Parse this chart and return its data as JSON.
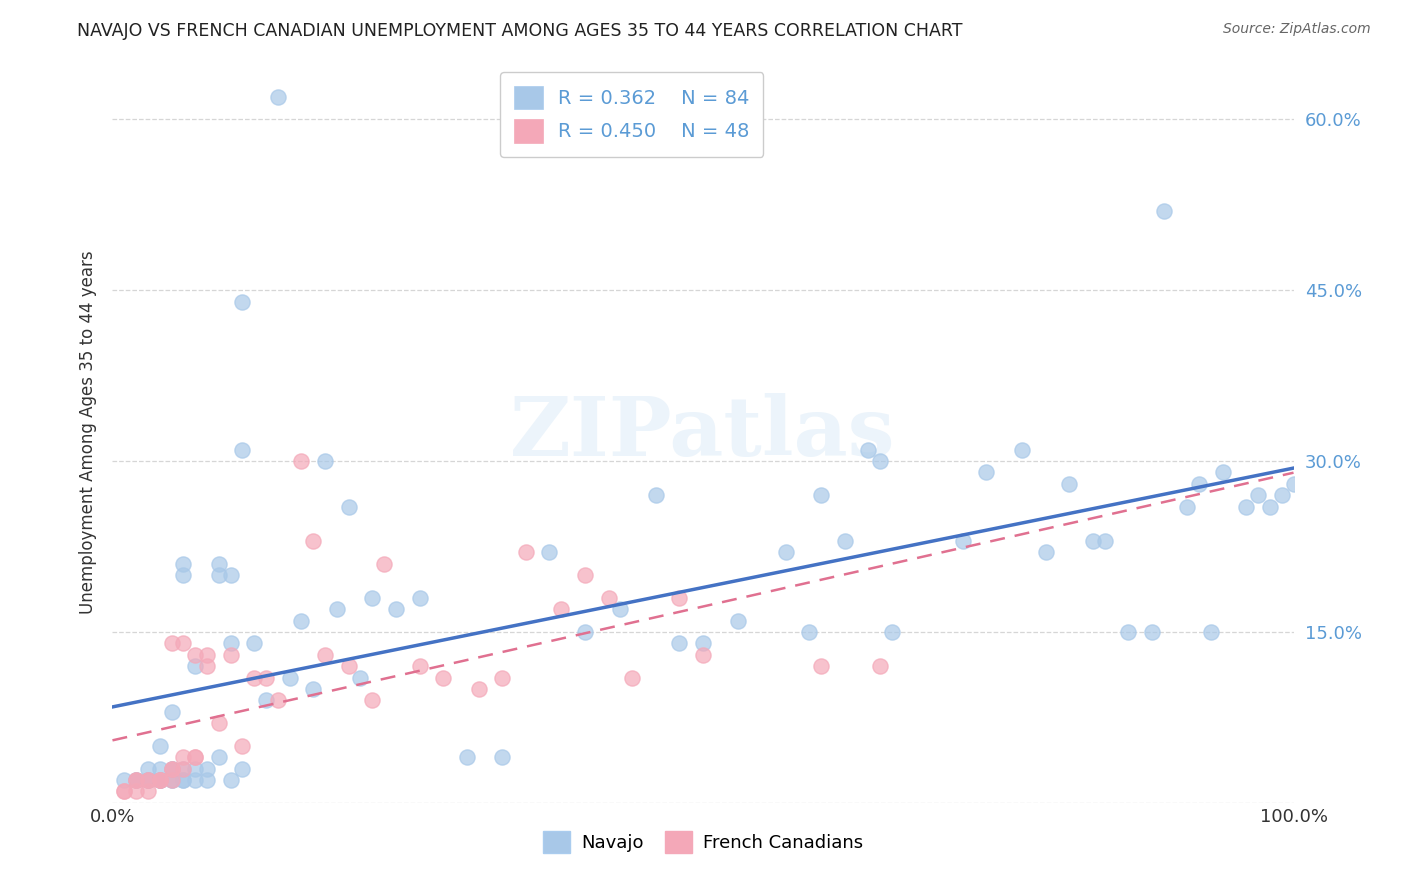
{
  "title": "NAVAJO VS FRENCH CANADIAN UNEMPLOYMENT AMONG AGES 35 TO 44 YEARS CORRELATION CHART",
  "source": "Source: ZipAtlas.com",
  "ylabel": "Unemployment Among Ages 35 to 44 years",
  "xlim": [
    0,
    1.0
  ],
  "ylim": [
    0,
    0.65
  ],
  "yticks": [
    0.0,
    0.15,
    0.3,
    0.45,
    0.6
  ],
  "yticklabels": [
    "",
    "15.0%",
    "30.0%",
    "45.0%",
    "60.0%"
  ],
  "navajo_R": 0.362,
  "navajo_N": 84,
  "french_R": 0.45,
  "french_N": 48,
  "navajo_color": "#A8C8E8",
  "french_color": "#F4A8B8",
  "navajo_line_color": "#4472C4",
  "french_line_color": "#E07090",
  "watermark_text": "ZIPatlas",
  "background_color": "#FFFFFF",
  "tick_color": "#5B9BD5",
  "navajo_x": [
    0.01,
    0.02,
    0.02,
    0.03,
    0.03,
    0.03,
    0.03,
    0.04,
    0.04,
    0.04,
    0.04,
    0.04,
    0.05,
    0.05,
    0.05,
    0.05,
    0.05,
    0.06,
    0.06,
    0.06,
    0.06,
    0.06,
    0.07,
    0.07,
    0.07,
    0.08,
    0.08,
    0.09,
    0.09,
    0.09,
    0.1,
    0.1,
    0.1,
    0.11,
    0.11,
    0.11,
    0.12,
    0.13,
    0.14,
    0.15,
    0.16,
    0.17,
    0.18,
    0.19,
    0.2,
    0.21,
    0.22,
    0.24,
    0.26,
    0.3,
    0.33,
    0.37,
    0.4,
    0.43,
    0.46,
    0.48,
    0.5,
    0.53,
    0.57,
    0.59,
    0.6,
    0.62,
    0.64,
    0.65,
    0.66,
    0.72,
    0.74,
    0.77,
    0.79,
    0.81,
    0.83,
    0.84,
    0.86,
    0.88,
    0.89,
    0.91,
    0.92,
    0.93,
    0.94,
    0.96,
    0.97,
    0.98,
    0.99,
    1.0
  ],
  "navajo_y": [
    0.02,
    0.02,
    0.02,
    0.02,
    0.02,
    0.02,
    0.03,
    0.02,
    0.02,
    0.03,
    0.05,
    0.02,
    0.02,
    0.02,
    0.03,
    0.03,
    0.08,
    0.02,
    0.02,
    0.03,
    0.2,
    0.21,
    0.02,
    0.03,
    0.12,
    0.02,
    0.03,
    0.04,
    0.2,
    0.21,
    0.02,
    0.14,
    0.2,
    0.31,
    0.44,
    0.03,
    0.14,
    0.09,
    0.62,
    0.11,
    0.16,
    0.1,
    0.3,
    0.17,
    0.26,
    0.11,
    0.18,
    0.17,
    0.18,
    0.04,
    0.04,
    0.22,
    0.15,
    0.17,
    0.27,
    0.14,
    0.14,
    0.16,
    0.22,
    0.15,
    0.27,
    0.23,
    0.31,
    0.3,
    0.15,
    0.23,
    0.29,
    0.31,
    0.22,
    0.28,
    0.23,
    0.23,
    0.15,
    0.15,
    0.52,
    0.26,
    0.28,
    0.15,
    0.29,
    0.26,
    0.27,
    0.26,
    0.27,
    0.28
  ],
  "french_x": [
    0.01,
    0.01,
    0.02,
    0.02,
    0.02,
    0.03,
    0.03,
    0.03,
    0.04,
    0.04,
    0.04,
    0.05,
    0.05,
    0.05,
    0.05,
    0.06,
    0.06,
    0.06,
    0.07,
    0.07,
    0.07,
    0.08,
    0.08,
    0.09,
    0.1,
    0.11,
    0.12,
    0.13,
    0.14,
    0.16,
    0.17,
    0.18,
    0.2,
    0.22,
    0.23,
    0.26,
    0.28,
    0.31,
    0.33,
    0.35,
    0.38,
    0.4,
    0.42,
    0.44,
    0.48,
    0.5,
    0.6,
    0.65
  ],
  "french_y": [
    0.01,
    0.01,
    0.01,
    0.02,
    0.02,
    0.01,
    0.02,
    0.02,
    0.02,
    0.02,
    0.02,
    0.02,
    0.03,
    0.03,
    0.14,
    0.03,
    0.14,
    0.04,
    0.04,
    0.13,
    0.04,
    0.12,
    0.13,
    0.07,
    0.13,
    0.05,
    0.11,
    0.11,
    0.09,
    0.3,
    0.23,
    0.13,
    0.12,
    0.09,
    0.21,
    0.12,
    0.11,
    0.1,
    0.11,
    0.22,
    0.17,
    0.2,
    0.18,
    0.11,
    0.18,
    0.13,
    0.12,
    0.12
  ]
}
